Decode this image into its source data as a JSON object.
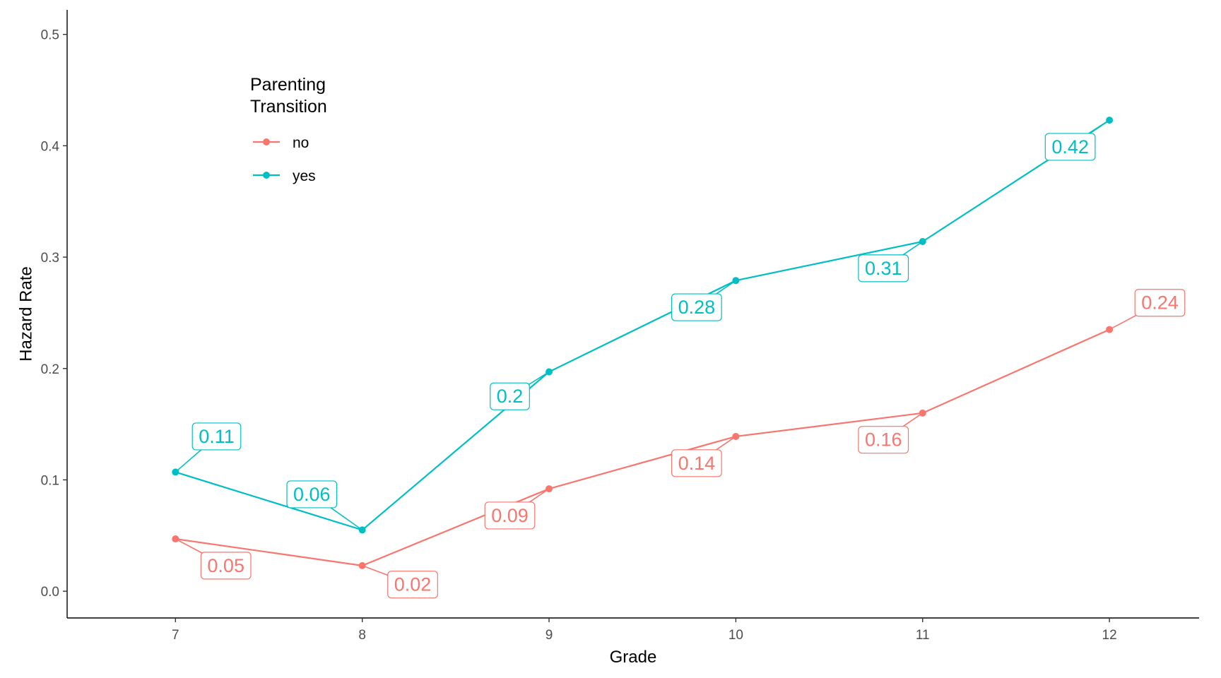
{
  "chart_data": {
    "type": "line",
    "xlabel": "Grade",
    "ylabel": "Hazard Rate",
    "x": [
      7,
      8,
      9,
      10,
      11,
      12
    ],
    "xlim": [
      6.42,
      12.48
    ],
    "ylim": [
      -0.024,
      0.522
    ],
    "x_ticks": [
      "7",
      "8",
      "9",
      "10",
      "11",
      "12"
    ],
    "y_ticks": [
      "0.0",
      "0.1",
      "0.2",
      "0.3",
      "0.4",
      "0.5"
    ],
    "grid": false,
    "legend": {
      "title_lines": [
        "Parenting",
        "Transition"
      ],
      "placement": "top-left"
    },
    "series": [
      {
        "name": "no",
        "color": "#F8766D",
        "values": [
          0.047,
          0.023,
          0.092,
          0.139,
          0.16,
          0.235
        ],
        "labels": [
          "0.05",
          "0.02",
          "0.09",
          "0.14",
          "0.16",
          "0.24"
        ],
        "label_positions": [
          [
            7.27,
            0.023
          ],
          [
            8.27,
            0.006
          ],
          [
            8.79,
            0.068
          ],
          [
            9.79,
            0.115
          ],
          [
            10.79,
            0.136
          ],
          [
            12.27,
            0.259
          ]
        ]
      },
      {
        "name": "yes",
        "color": "#00BFC4",
        "values": [
          0.107,
          0.055,
          0.197,
          0.279,
          0.314,
          0.423
        ],
        "labels": [
          "0.11",
          "0.06",
          "0.2",
          "0.28",
          "0.31",
          "0.42"
        ],
        "label_positions": [
          [
            7.22,
            0.139
          ],
          [
            7.73,
            0.087
          ],
          [
            8.79,
            0.175
          ],
          [
            9.79,
            0.255
          ],
          [
            10.79,
            0.29
          ],
          [
            11.79,
            0.399
          ]
        ]
      }
    ]
  }
}
